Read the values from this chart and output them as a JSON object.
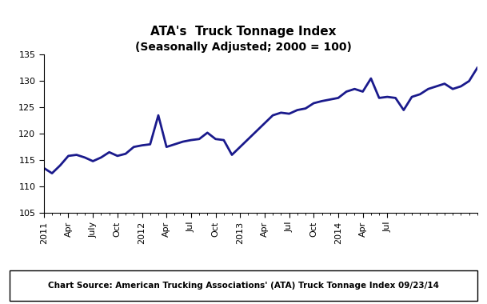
{
  "title_line1": "ATA's  Truck Tonnage Index",
  "title_line2": "(Seasonally Adjusted; 2000 = 100)",
  "line_color": "#1a1a8c",
  "line_width": 2.0,
  "ylim": [
    105,
    135
  ],
  "yticks": [
    105,
    110,
    115,
    120,
    125,
    130,
    135
  ],
  "source_text": "Chart Source: American Trucking Associations' (ATA) Truck Tonnage Index 09/23/14",
  "xtick_labels": [
    "2011",
    "Apr",
    "July",
    "Oct",
    "2012",
    "Apr",
    "Jul",
    "Oct",
    "2013",
    "Apr",
    "Jul",
    "Oct",
    "2014",
    "Apr",
    "Jul"
  ],
  "xtick_positions": [
    0,
    3,
    6,
    9,
    12,
    15,
    18,
    21,
    24,
    27,
    30,
    33,
    36,
    39,
    42
  ],
  "values": [
    113.5,
    112.5,
    114.0,
    115.8,
    116.0,
    115.5,
    114.8,
    115.5,
    116.5,
    115.8,
    116.2,
    117.5,
    117.8,
    118.0,
    123.5,
    117.5,
    118.0,
    118.5,
    118.8,
    119.0,
    120.2,
    119.0,
    118.8,
    116.0,
    117.5,
    119.0,
    120.5,
    122.0,
    123.5,
    124.0,
    123.8,
    124.5,
    124.8,
    125.8,
    126.2,
    126.5,
    126.8,
    128.0,
    128.5,
    128.0,
    130.5,
    126.8,
    127.0,
    126.8,
    124.5,
    127.0,
    127.5,
    128.5,
    129.0,
    129.5,
    128.5,
    129.0,
    130.0,
    132.5
  ]
}
